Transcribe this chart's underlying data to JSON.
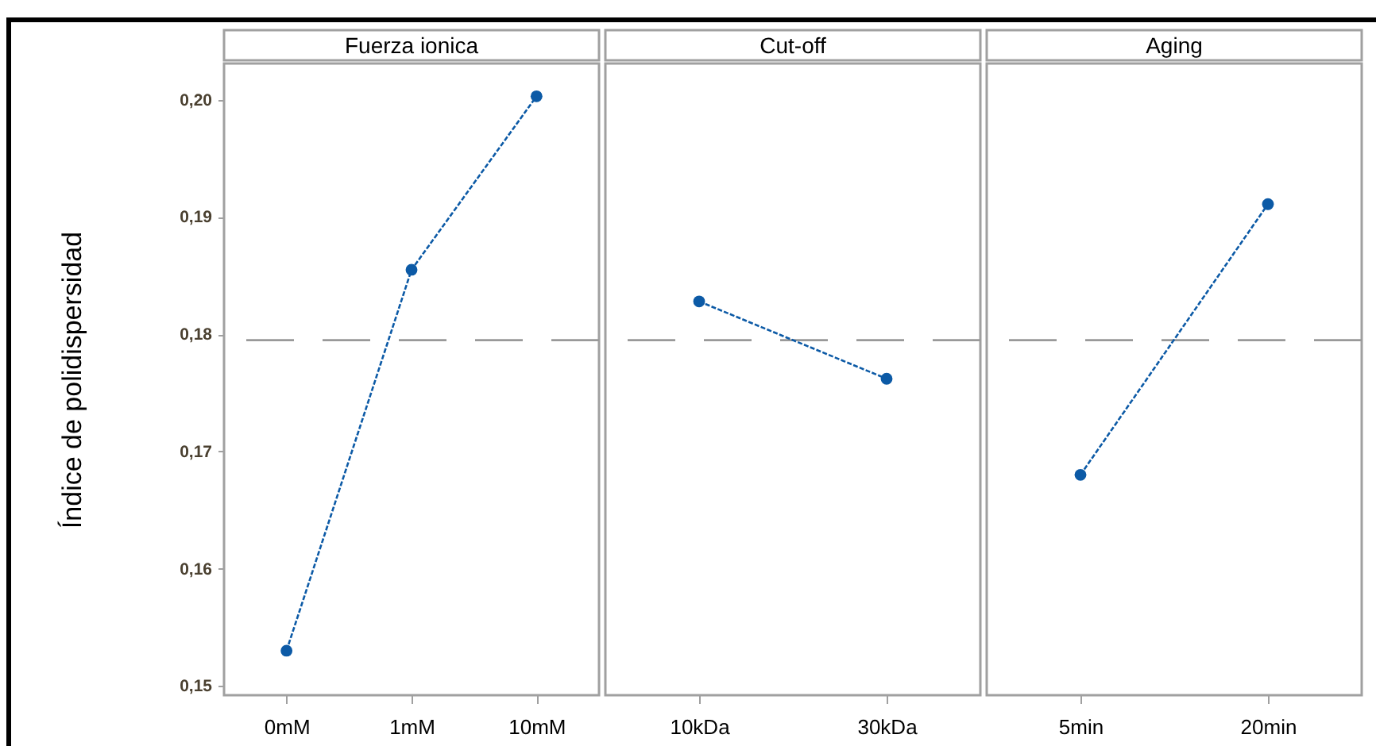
{
  "chart_data": [
    {
      "type": "line",
      "title": "Fuerza ionica",
      "ylabel": "Índice de polidispersidad",
      "categories": [
        "0mM",
        "1mM",
        "10mM"
      ],
      "series": [
        {
          "color": "#0c5aa6",
          "values": [
            0.153,
            0.1855,
            0.2003
          ],
          "line_style": "dashed"
        }
      ],
      "ylim": [
        0.1492,
        0.2031
      ],
      "yticks": [
        {
          "value": 0.15,
          "label": "0,15"
        },
        {
          "value": 0.16,
          "label": "0,16"
        },
        {
          "value": 0.17,
          "label": "0,17"
        },
        {
          "value": 0.18,
          "label": "0,18"
        },
        {
          "value": 0.19,
          "label": "0,19"
        },
        {
          "value": 0.2,
          "label": "0,20"
        }
      ],
      "ref_lines": [
        {
          "axis": "y",
          "value": 0.1795,
          "color": "#999999",
          "line_style": "dashed"
        }
      ],
      "marker": "circle",
      "grid": false
    },
    {
      "type": "line",
      "title": "Cut-off",
      "categories": [
        "10kDa",
        "30kDa"
      ],
      "series": [
        {
          "color": "#0c5aa6",
          "values": [
            0.1828,
            0.1762
          ],
          "line_style": "dashed"
        }
      ],
      "ylim": [
        0.1492,
        0.2031
      ],
      "tick_labels": "x",
      "ref_lines": [
        {
          "axis": "y",
          "value": 0.1795,
          "color": "#999999",
          "line_style": "dashed"
        }
      ],
      "marker": "circle",
      "grid": false
    },
    {
      "type": "line",
      "title": "Aging",
      "categories": [
        "5min",
        "20min"
      ],
      "series": [
        {
          "color": "#0c5aa6",
          "values": [
            0.168,
            0.1911
          ],
          "line_style": "dashed"
        }
      ],
      "ylim": [
        0.1492,
        0.2031
      ],
      "tick_labels": "x",
      "ref_lines": [
        {
          "axis": "y",
          "value": 0.1795,
          "color": "#999999",
          "line_style": "dashed"
        }
      ],
      "marker": "circle",
      "grid": false
    }
  ]
}
